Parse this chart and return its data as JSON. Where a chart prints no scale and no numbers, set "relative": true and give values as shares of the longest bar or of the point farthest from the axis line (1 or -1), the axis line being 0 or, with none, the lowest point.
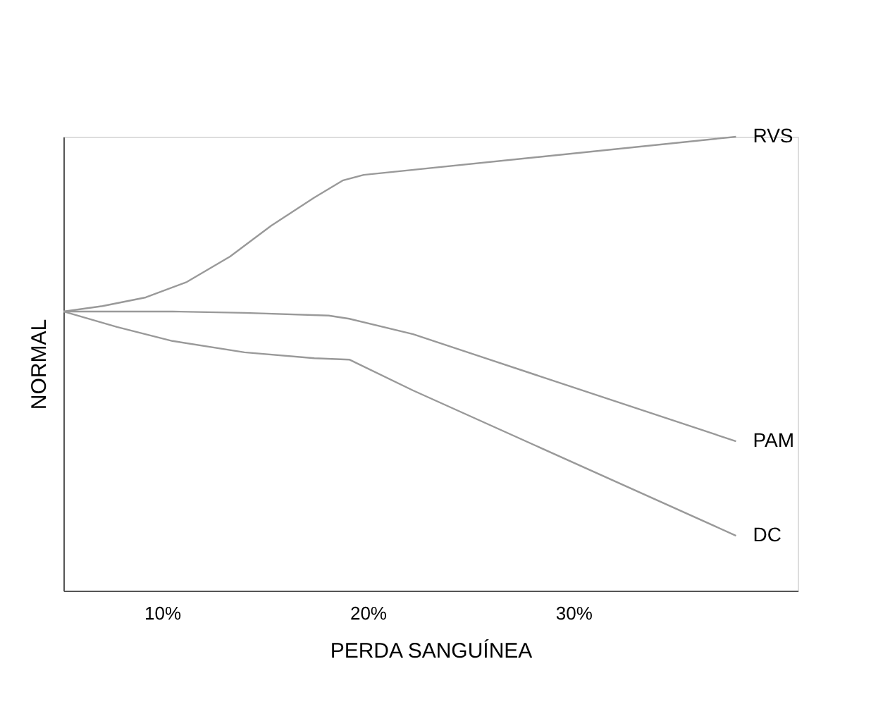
{
  "chart_data": {
    "type": "line",
    "relative": true,
    "xlabel": "PERDA SANGUÍNEA",
    "ylabel": "NORMAL",
    "xlim": [
      5.2,
      40.9
    ],
    "xticks": [
      {
        "value": 10,
        "label": "10%"
      },
      {
        "value": 20,
        "label": "20%"
      },
      {
        "value": 30,
        "label": "30%"
      }
    ],
    "grid": false,
    "marker": "none",
    "line_style": "solid",
    "series": [
      {
        "name": "RVS",
        "color": "#999999",
        "x": [
          5.2,
          7.1,
          9.2,
          11.2,
          13.3,
          15.3,
          17.4,
          18.8,
          19.8,
          37.9
        ],
        "values": [
          0.615,
          0.627,
          0.646,
          0.68,
          0.736,
          0.804,
          0.866,
          0.904,
          0.916,
          1.0
        ]
      },
      {
        "name": "PAM",
        "color": "#999999",
        "x": [
          5.2,
          10.5,
          14.0,
          18.1,
          19.1,
          22.2,
          37.9
        ],
        "values": [
          0.615,
          0.615,
          0.612,
          0.606,
          0.599,
          0.565,
          0.329
        ]
      },
      {
        "name": "DC",
        "color": "#999999",
        "x": [
          5.2,
          7.8,
          10.5,
          14.0,
          17.4,
          19.1,
          22.2,
          37.9
        ],
        "values": [
          0.615,
          0.581,
          0.55,
          0.525,
          0.512,
          0.509,
          0.441,
          0.121
        ]
      }
    ]
  }
}
